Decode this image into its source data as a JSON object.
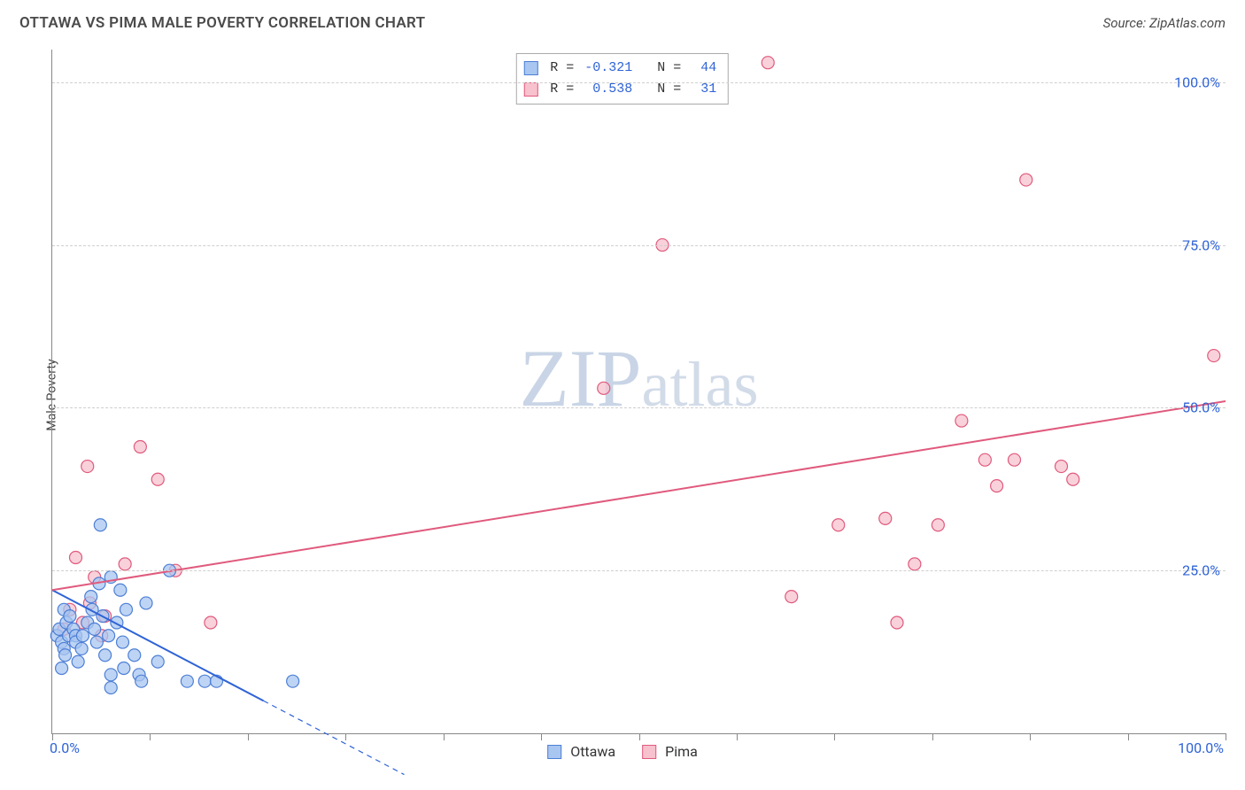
{
  "title": "OTTAWA VS PIMA MALE POVERTY CORRELATION CHART",
  "source": "Source: ZipAtlas.com",
  "ylabel": "Male Poverty",
  "watermark_a": "ZIP",
  "watermark_b": "atlas",
  "legend_series": [
    {
      "name": "Ottawa",
      "swatch_fill": "#a8c6f0",
      "swatch_stroke": "#4d7fd6"
    },
    {
      "name": "Pima",
      "swatch_fill": "#f7c1cd",
      "swatch_stroke": "#e05a7d"
    }
  ],
  "legend_stats": [
    {
      "r_label": "R =",
      "r": "-0.321",
      "n_label": "N =",
      "n": "44",
      "swatch_fill": "#a8c6f0",
      "swatch_stroke": "#4d7fd6"
    },
    {
      "r_label": "R =",
      "r": "0.538",
      "n_label": "N =",
      "n": "31",
      "swatch_fill": "#f7c1cd",
      "swatch_stroke": "#e05a7d"
    }
  ],
  "chart": {
    "type": "scatter",
    "xlim": [
      0,
      100
    ],
    "ylim": [
      0,
      105
    ],
    "y_ticks": [
      25,
      50,
      75,
      100
    ],
    "y_tick_labels": [
      "25.0%",
      "50.0%",
      "75.0%",
      "100.0%"
    ],
    "x_ticks": [
      0,
      8.33,
      16.67,
      25,
      33.33,
      41.67,
      50,
      58.33,
      66.67,
      75,
      83.33,
      91.67,
      100
    ],
    "x_tick_labels": {
      "left": "0.0%",
      "right": "100.0%"
    },
    "grid_color": "#cfcfcf",
    "background_color": "#ffffff",
    "marker_radius": 7,
    "series": {
      "ottawa": {
        "fill": "#a8c6f0",
        "stroke": "#4d7fd6",
        "opacity": 0.75,
        "points": [
          [
            0.4,
            15
          ],
          [
            0.6,
            16
          ],
          [
            0.8,
            14
          ],
          [
            1.0,
            13
          ],
          [
            1.2,
            17
          ],
          [
            1.0,
            19
          ],
          [
            1.4,
            15
          ],
          [
            1.8,
            16
          ],
          [
            1.1,
            12
          ],
          [
            0.8,
            10
          ],
          [
            1.5,
            18
          ],
          [
            2.0,
            15
          ],
          [
            2.0,
            14
          ],
          [
            2.6,
            15
          ],
          [
            2.2,
            11
          ],
          [
            2.5,
            13
          ],
          [
            3.0,
            17
          ],
          [
            3.3,
            21
          ],
          [
            3.4,
            19
          ],
          [
            3.6,
            16
          ],
          [
            3.8,
            14
          ],
          [
            4.0,
            23
          ],
          [
            4.1,
            32
          ],
          [
            4.3,
            18
          ],
          [
            4.5,
            12
          ],
          [
            4.8,
            15
          ],
          [
            5.0,
            24
          ],
          [
            5.0,
            9
          ],
          [
            5.5,
            17
          ],
          [
            5.8,
            22
          ],
          [
            6.0,
            14
          ],
          [
            6.1,
            10
          ],
          [
            6.3,
            19
          ],
          [
            7.0,
            12
          ],
          [
            7.4,
            9
          ],
          [
            7.6,
            8
          ],
          [
            8.0,
            20
          ],
          [
            9.0,
            11
          ],
          [
            10.0,
            25
          ],
          [
            11.5,
            8
          ],
          [
            13.0,
            8
          ],
          [
            14.0,
            8
          ],
          [
            20.5,
            8
          ],
          [
            5.0,
            7
          ]
        ],
        "trend": {
          "x1": 0,
          "y1": 22,
          "x2": 18,
          "y2": 5,
          "dashed_to_x": 30,
          "stroke": "#2f63d6",
          "stroke_width": 2
        }
      },
      "pima": {
        "fill": "#f7c1cd",
        "stroke": "#e05a7d",
        "opacity": 0.75,
        "points": [
          [
            1.0,
            16
          ],
          [
            1.5,
            19
          ],
          [
            2.0,
            27
          ],
          [
            2.6,
            17
          ],
          [
            3.0,
            41
          ],
          [
            3.2,
            20
          ],
          [
            3.6,
            24
          ],
          [
            4.5,
            18
          ],
          [
            6.2,
            26
          ],
          [
            7.5,
            44
          ],
          [
            9.0,
            39
          ],
          [
            10.5,
            25
          ],
          [
            13.5,
            17
          ],
          [
            47.0,
            53
          ],
          [
            52.0,
            75
          ],
          [
            61.0,
            103
          ],
          [
            63.0,
            21
          ],
          [
            67.0,
            32
          ],
          [
            72.0,
            17
          ],
          [
            73.5,
            26
          ],
          [
            75.5,
            32
          ],
          [
            77.5,
            48
          ],
          [
            80.5,
            38
          ],
          [
            83.0,
            85
          ],
          [
            82.0,
            42
          ],
          [
            86.0,
            41
          ],
          [
            87.0,
            39
          ],
          [
            99.0,
            58
          ],
          [
            79.5,
            42
          ],
          [
            71.0,
            33
          ],
          [
            4.2,
            15
          ]
        ],
        "trend": {
          "x1": 0,
          "y1": 22,
          "x2": 100,
          "y2": 51,
          "stroke": "#e05a7d",
          "stroke_width": 2
        }
      }
    }
  }
}
